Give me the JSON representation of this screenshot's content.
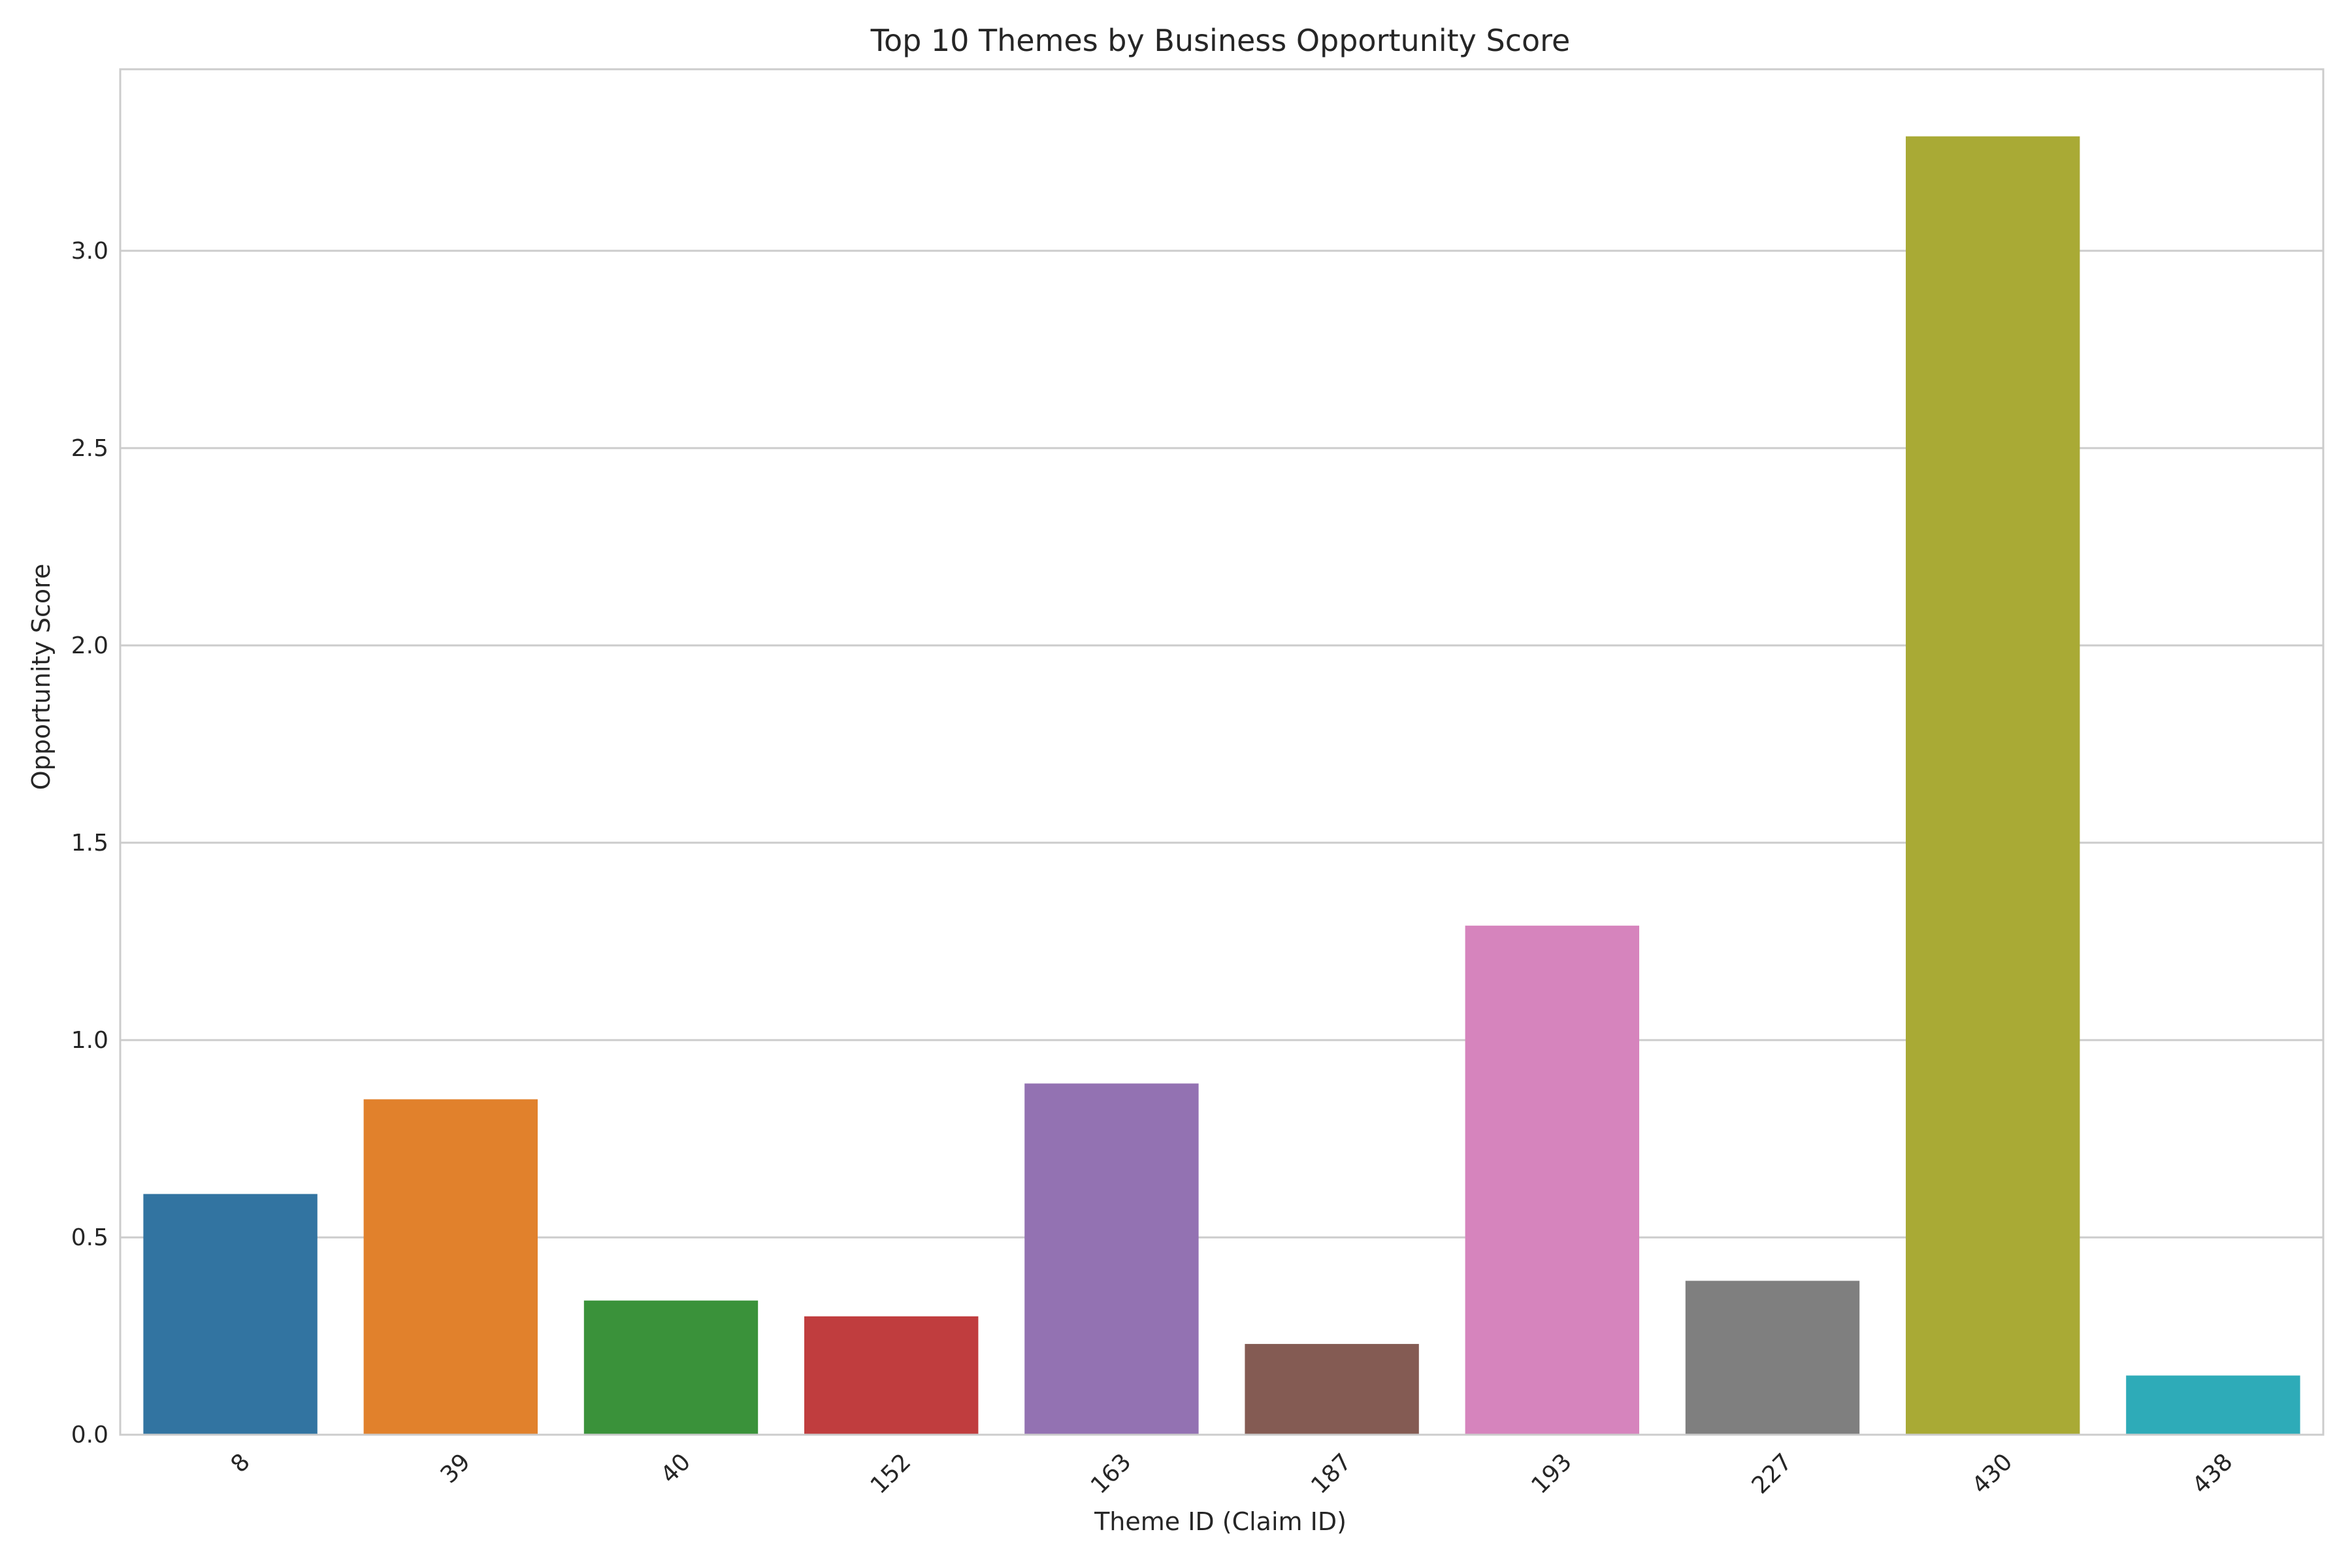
{
  "chart_data": {
    "type": "bar",
    "title": "Top 10 Themes by Business Opportunity Score",
    "xlabel": "Theme ID (Claim ID)",
    "ylabel": "Opportunity Score",
    "categories": [
      "8",
      "39",
      "40",
      "152",
      "163",
      "187",
      "193",
      "227",
      "430",
      "438"
    ],
    "values": [
      0.61,
      0.85,
      0.34,
      0.3,
      0.89,
      0.23,
      1.29,
      0.39,
      3.29,
      0.15
    ],
    "colors": [
      "#3274a1",
      "#e1812c",
      "#3a923a",
      "#c03d3e",
      "#9372b2",
      "#845b53",
      "#d684bd",
      "#7f7f7f",
      "#a9aa35",
      "#2eabb8"
    ],
    "ylim": [
      0,
      3.46
    ],
    "yticks": [
      0.0,
      0.5,
      1.0,
      1.5,
      2.0,
      2.5,
      3.0
    ],
    "ytick_labels": [
      "0.0",
      "0.5",
      "1.0",
      "1.5",
      "2.0",
      "2.5",
      "3.0"
    ],
    "grid": "horizontal",
    "legend": "none"
  }
}
